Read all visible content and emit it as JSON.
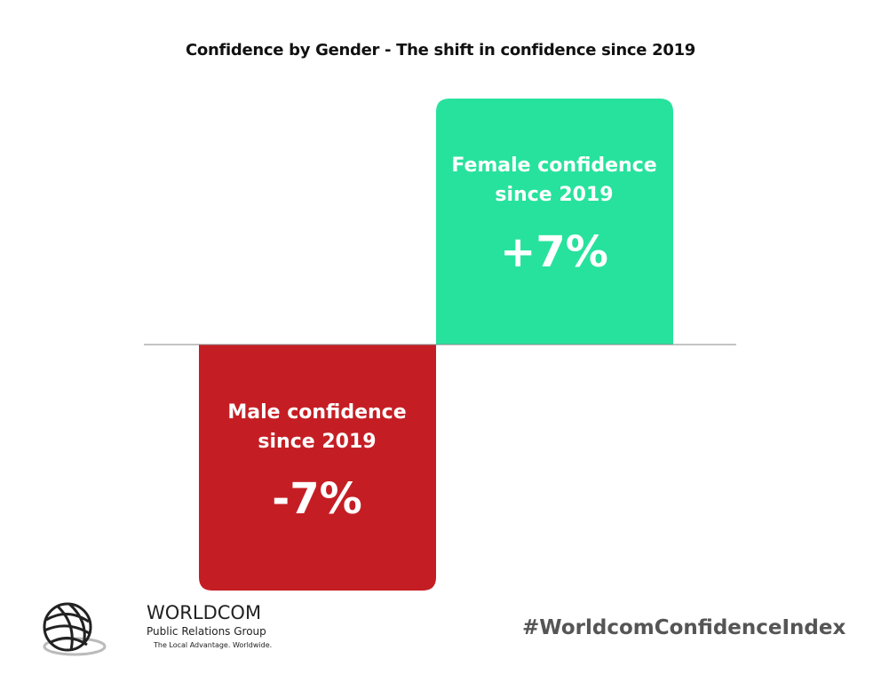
{
  "chart_data": {
    "type": "bar",
    "title": "Confidence by Gender - The shift in confidence since 2019",
    "categories": [
      "Male confidence since 2019",
      "Female confidence since 2019"
    ],
    "category_lines": [
      [
        "Male confidence",
        "since 2019"
      ],
      [
        "Female confidence",
        "since 2019"
      ]
    ],
    "values": [
      -7,
      7
    ],
    "data_labels": [
      "-7%",
      "+7%"
    ],
    "colors": [
      "#c41e24",
      "#27e29d"
    ],
    "ylim": [
      -7,
      7
    ],
    "grid": false,
    "legend": "none"
  },
  "footer": {
    "hashtag": "#WorldcomConfidenceIndex"
  },
  "logo": {
    "name": "WORLDCOM",
    "sub": "Public Relations Group",
    "tagline": "The Local Advantage. Worldwide."
  }
}
